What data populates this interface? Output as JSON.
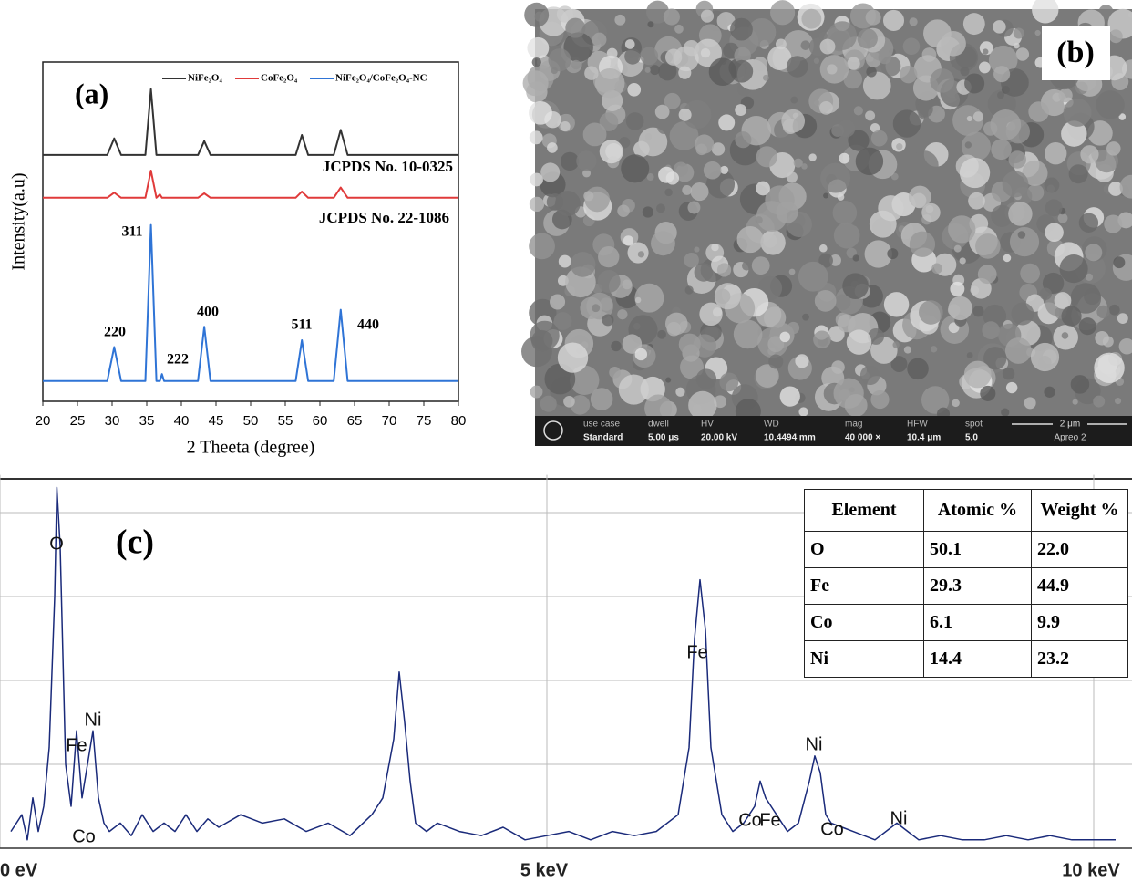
{
  "chart_data": [
    {
      "type": "line",
      "panel_label": "(a)",
      "x_label": "2 Theeta (degree)",
      "y_label": "Intensity(a.u)",
      "x": [
        20,
        29.3,
        30.3,
        31.3,
        34.8,
        35.6,
        36.4,
        36.9,
        37.2,
        37.5,
        42.4,
        43.3,
        44.2,
        56.5,
        57.4,
        58.3,
        62.0,
        63.0,
        64.0,
        80
      ],
      "series": [
        {
          "name": "NiFe₂O₄",
          "color": "#333333",
          "values": [
            72.6,
            72.6,
            77.5,
            72.6,
            72.6,
            92,
            72.6,
            72.6,
            72.6,
            72.6,
            72.6,
            76.7,
            72.6,
            72.6,
            78.5,
            72.6,
            72.6,
            80,
            72.6,
            72.6
          ]
        },
        {
          "name": "CoFe₂O₄",
          "color": "#e03a3a",
          "values": [
            60,
            60,
            61.5,
            60,
            60,
            68,
            60,
            61,
            60,
            60,
            60,
            61.3,
            60,
            60,
            61.8,
            60,
            60,
            63,
            60,
            60
          ]
        },
        {
          "name": "NiFe₂O₄/CoFe₂O₄-NC",
          "color": "#2f74d6",
          "values": [
            6,
            6,
            16,
            6,
            6,
            52,
            6,
            6,
            8,
            6,
            6,
            22,
            6,
            6,
            18,
            6,
            6,
            27,
            6,
            6
          ]
        }
      ],
      "xlim": [
        20,
        80
      ],
      "xticks": [
        20,
        25,
        30,
        35,
        40,
        45,
        50,
        55,
        60,
        65,
        70,
        75,
        80
      ],
      "ylim": [
        0,
        100
      ],
      "annotations": [
        "JCPDS No. 10-0325",
        "JCPDS No. 22-1086",
        "311",
        "220",
        "222",
        "400",
        "511",
        "440"
      ]
    },
    {
      "type": "line",
      "panel_label": "(c)",
      "x": [
        0.1,
        0.2,
        0.25,
        0.3,
        0.35,
        0.4,
        0.45,
        0.5,
        0.52,
        0.55,
        0.6,
        0.65,
        0.7,
        0.75,
        0.8,
        0.85,
        0.9,
        0.95,
        1.0,
        1.1,
        1.2,
        1.3,
        1.4,
        1.5,
        1.6,
        1.7,
        1.8,
        1.9,
        2.0,
        2.2,
        2.4,
        2.6,
        2.8,
        3.0,
        3.2,
        3.4,
        3.5,
        3.6,
        3.65,
        3.7,
        3.75,
        3.8,
        3.9,
        4.0,
        4.2,
        4.4,
        4.6,
        4.8,
        5.0,
        5.2,
        5.4,
        5.6,
        5.8,
        6.0,
        6.2,
        6.3,
        6.35,
        6.4,
        6.45,
        6.5,
        6.6,
        6.7,
        6.8,
        6.9,
        6.95,
        7.0,
        7.05,
        7.1,
        7.2,
        7.3,
        7.4,
        7.45,
        7.5,
        7.55,
        7.6,
        7.7,
        7.8,
        8.0,
        8.2,
        8.3,
        8.4,
        8.6,
        8.8,
        9.0,
        9.2,
        9.4,
        9.6,
        9.8,
        10.0,
        10.2
      ],
      "series": [
        {
          "color": "#1a2a7a",
          "values": [
            0.2,
            0.4,
            0.1,
            0.6,
            0.2,
            0.5,
            1.2,
            3.0,
            4.3,
            3.6,
            1.0,
            0.5,
            1.4,
            0.6,
            1.0,
            1.4,
            0.6,
            0.3,
            0.2,
            0.3,
            0.15,
            0.4,
            0.2,
            0.3,
            0.2,
            0.4,
            0.2,
            0.35,
            0.25,
            0.4,
            0.3,
            0.35,
            0.2,
            0.3,
            0.15,
            0.4,
            0.6,
            1.3,
            2.1,
            1.5,
            0.8,
            0.3,
            0.2,
            0.3,
            0.2,
            0.15,
            0.25,
            0.1,
            0.15,
            0.2,
            0.1,
            0.2,
            0.15,
            0.2,
            0.4,
            1.2,
            2.5,
            3.2,
            2.6,
            1.2,
            0.4,
            0.2,
            0.3,
            0.5,
            0.8,
            0.6,
            0.5,
            0.4,
            0.2,
            0.3,
            0.8,
            1.1,
            0.9,
            0.4,
            0.3,
            0.25,
            0.2,
            0.1,
            0.3,
            0.2,
            0.1,
            0.15,
            0.1,
            0.1,
            0.15,
            0.1,
            0.15,
            0.1,
            0.1,
            0.1
          ]
        }
      ],
      "xlim": [
        0,
        10.35
      ],
      "xticks": [
        {
          "value": 0,
          "label": "0 eV"
        },
        {
          "value": 5,
          "label": "5 keV"
        },
        {
          "value": 10,
          "label": "10 keV"
        }
      ],
      "ylim": [
        0,
        4.45
      ],
      "ygrid": [
        1,
        2,
        3,
        4
      ],
      "annotations": [
        "O",
        "Ni",
        "Fe",
        "Co",
        "Fe",
        "Ni",
        "Co",
        "Fe",
        "Co",
        "Ni"
      ]
    }
  ],
  "sem": {
    "panel_label": "(b)",
    "info": [
      [
        "use case",
        "Standard"
      ],
      [
        "dwell",
        "5.00 μs"
      ],
      [
        "HV",
        "20.00 kV"
      ],
      [
        "WD",
        "10.4494 mm"
      ],
      [
        "mag",
        "40 000 ×"
      ],
      [
        "HFW",
        "10.4 μm"
      ],
      [
        "spot",
        "5.0"
      ]
    ],
    "scale_bar": "2 μm",
    "instrument": "Apreo 2"
  },
  "table": {
    "header": [
      "Element",
      "Atomic %",
      "Weight %"
    ],
    "rows": [
      [
        "O",
        "50.1",
        "22.0"
      ],
      [
        "Fe",
        "29.3",
        "44.9"
      ],
      [
        "Co",
        "6.1",
        "9.9"
      ],
      [
        "Ni",
        "14.4",
        "23.2"
      ]
    ]
  }
}
